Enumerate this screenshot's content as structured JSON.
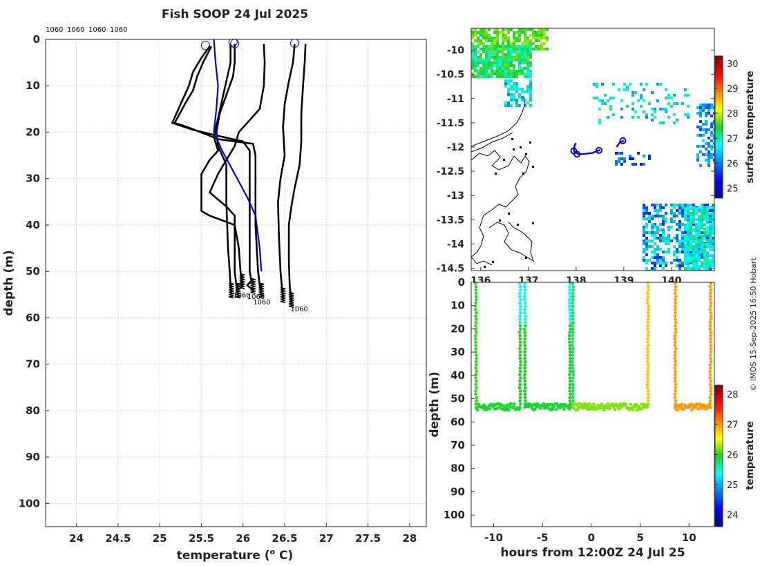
{
  "chart_data": [
    {
      "type": "line",
      "title": "Fish SOOP 24 Jul 2025",
      "xlabel": "temperature (",
      "xlabel_sup": "o",
      "xlabel_tail": " C)",
      "ylabel": "depth (m)",
      "xlim": [
        23.63,
        28.2
      ],
      "ylim": [
        0,
        105
      ],
      "xticks": [
        24,
        24.5,
        25,
        25.5,
        26,
        26.5,
        27,
        27.5,
        28
      ],
      "yticks": [
        0,
        10,
        20,
        30,
        40,
        50,
        60,
        70,
        80,
        90,
        100
      ],
      "top_labels": [
        "1060",
        "1060",
        "1060",
        "1060"
      ],
      "profile_labels": [
        {
          "text": "1060",
          "x": 25.88,
          "y": 55.0
        },
        {
          "text": "1060",
          "x": 26.05,
          "y": 55.3
        },
        {
          "text": "1060",
          "x": 26.12,
          "y": 56.5
        },
        {
          "text": "1060",
          "x": 26.57,
          "y": 58.0
        }
      ],
      "series": [
        {
          "name": "profile-1",
          "color": "#000000",
          "points": [
            [
              25.6,
              1.5
            ],
            [
              25.5,
              4
            ],
            [
              25.4,
              7
            ],
            [
              25.35,
              10
            ],
            [
              25.3,
              12
            ],
            [
              25.25,
              14
            ],
            [
              25.2,
              16
            ],
            [
              25.15,
              18
            ],
            [
              25.4,
              19.5
            ],
            [
              25.75,
              21
            ],
            [
              26.0,
              22
            ],
            [
              26.08,
              24
            ],
            [
              26.08,
              30
            ],
            [
              26.08,
              40
            ],
            [
              26.08,
              50
            ],
            [
              26.1,
              52
            ],
            [
              26.05,
              53
            ],
            [
              26.12,
              54
            ]
          ]
        },
        {
          "name": "profile-2",
          "color": "#000000",
          "points": [
            [
              25.62,
              1.5
            ],
            [
              25.52,
              5
            ],
            [
              25.45,
              8
            ],
            [
              25.4,
              11
            ],
            [
              25.3,
              14
            ],
            [
              25.18,
              18
            ],
            [
              25.35,
              19
            ],
            [
              25.7,
              21.5
            ],
            [
              26.12,
              22.5
            ],
            [
              26.15,
              25
            ],
            [
              26.15,
              40
            ],
            [
              26.18,
              50
            ],
            [
              26.2,
              53
            ],
            [
              26.22,
              55
            ]
          ]
        },
        {
          "name": "profile-3",
          "color": "#000000",
          "points": [
            [
              25.9,
              1
            ],
            [
              25.9,
              5
            ],
            [
              25.88,
              8
            ],
            [
              25.8,
              12
            ],
            [
              25.72,
              16
            ],
            [
              25.68,
              20
            ],
            [
              25.7,
              23
            ],
            [
              25.75,
              25
            ],
            [
              25.8,
              27
            ],
            [
              25.8,
              35
            ],
            [
              25.82,
              45
            ],
            [
              25.84,
              50
            ],
            [
              25.85,
              53
            ],
            [
              25.86,
              55
            ]
          ]
        },
        {
          "name": "profile-4",
          "color": "#000000",
          "points": [
            [
              25.85,
              1
            ],
            [
              25.85,
              5
            ],
            [
              25.8,
              9
            ],
            [
              25.75,
              13
            ],
            [
              25.7,
              17
            ],
            [
              25.65,
              21
            ],
            [
              25.7,
              24
            ],
            [
              25.6,
              26
            ],
            [
              25.5,
              29
            ],
            [
              25.5,
              33
            ],
            [
              25.5,
              37
            ],
            [
              25.6,
              38
            ],
            [
              25.9,
              40
            ],
            [
              25.95,
              45
            ],
            [
              25.97,
              50
            ],
            [
              25.99,
              53
            ]
          ]
        },
        {
          "name": "profile-5",
          "color": "#000000",
          "points": [
            [
              26.25,
              1
            ],
            [
              26.26,
              5
            ],
            [
              26.25,
              10
            ],
            [
              26.2,
              15
            ],
            [
              26.05,
              18
            ],
            [
              25.95,
              20
            ],
            [
              25.9,
              23
            ],
            [
              25.8,
              26
            ],
            [
              25.7,
              29
            ],
            [
              25.6,
              33
            ],
            [
              25.8,
              36
            ],
            [
              25.9,
              38
            ],
            [
              25.9,
              45
            ],
            [
              25.9,
              50
            ],
            [
              25.92,
              53
            ],
            [
              25.94,
              55
            ]
          ]
        },
        {
          "name": "profile-6",
          "color": "#000000",
          "points": [
            [
              26.62,
              1
            ],
            [
              26.6,
              5
            ],
            [
              26.55,
              9
            ],
            [
              26.5,
              14
            ],
            [
              26.48,
              19
            ],
            [
              26.5,
              25
            ],
            [
              26.45,
              30
            ],
            [
              26.42,
              35
            ],
            [
              26.43,
              42
            ],
            [
              26.45,
              50
            ],
            [
              26.47,
              54
            ],
            [
              26.48,
              56
            ]
          ]
        },
        {
          "name": "profile-7",
          "color": "#000000",
          "points": [
            [
              26.75,
              1
            ],
            [
              26.74,
              5
            ],
            [
              26.72,
              10
            ],
            [
              26.7,
              16
            ],
            [
              26.7,
              22
            ],
            [
              26.68,
              27
            ],
            [
              26.62,
              32
            ],
            [
              26.58,
              36
            ],
            [
              26.55,
              40
            ],
            [
              26.55,
              48
            ],
            [
              26.56,
              53
            ],
            [
              26.58,
              57
            ]
          ]
        },
        {
          "name": "model-profile",
          "color": "#0000cc",
          "points": [
            [
              25.65,
              0
            ],
            [
              25.67,
              5
            ],
            [
              25.7,
              10
            ],
            [
              25.68,
              15
            ],
            [
              25.65,
              20
            ],
            [
              25.75,
              24
            ],
            [
              25.9,
              29
            ],
            [
              26.05,
              34
            ],
            [
              26.15,
              38
            ],
            [
              26.2,
              45
            ],
            [
              26.22,
              50
            ]
          ]
        }
      ],
      "markers": [
        [
          25.55,
          1.3
        ],
        [
          25.88,
          0.6
        ],
        [
          25.9,
          0.9
        ],
        [
          26.62,
          0.8
        ]
      ]
    },
    {
      "type": "heatmap",
      "ylabel": "",
      "colorbar_label": "surface temperature",
      "colorbar_range": [
        24.6,
        30.3
      ],
      "colorbar_ticks": [
        25,
        26,
        27,
        28,
        29,
        30
      ],
      "xlim": [
        135.8,
        140.9
      ],
      "ylim": [
        -14.55,
        -9.55
      ],
      "xticks": [
        "136",
        "137",
        "138",
        "139",
        "140"
      ],
      "xtick_values": [
        136,
        137,
        138,
        139,
        140
      ],
      "yticks": [
        "-10",
        "-10.5",
        "-11",
        "-11.5",
        "-12",
        "-12.5",
        "-13",
        "-13.5",
        "-14",
        "-14.5"
      ],
      "ytick_values": [
        -10,
        -10.5,
        -11,
        -11.5,
        -12,
        -12.5,
        -13,
        -13.5,
        -14,
        -14.5
      ],
      "track": [
        [
          [
            137.95,
            -12.08
          ],
          [
            137.97,
            -11.95
          ],
          [
            138.0,
            -11.92
          ]
        ],
        [
          [
            137.95,
            -12.08
          ],
          [
            138.05,
            -12.15
          ],
          [
            138.2,
            -12.14
          ],
          [
            138.35,
            -12.12
          ],
          [
            138.5,
            -12.06
          ]
        ],
        [
          [
            138.85,
            -12.0
          ],
          [
            138.92,
            -11.9
          ],
          [
            139.0,
            -11.87
          ]
        ]
      ],
      "track_markers": [
        [
          137.95,
          -12.08
        ],
        [
          138.02,
          -12.15
        ],
        [
          138.48,
          -12.07
        ],
        [
          138.98,
          -11.87
        ]
      ]
    },
    {
      "type": "scatter",
      "xlabel": "hours from 12:00Z 24 Jul 25",
      "ylabel": "depth (m)",
      "colorbar_label": "temperature",
      "colorbar_range": [
        23.6,
        28.3
      ],
      "colorbar_ticks": [
        24,
        25,
        26,
        27,
        28
      ],
      "xlim": [
        -12.3,
        12.6
      ],
      "ylim": [
        0,
        105
      ],
      "xticks": [
        -10,
        -5,
        0,
        5,
        10
      ],
      "yticks": [
        0,
        10,
        20,
        30,
        40,
        50,
        60,
        70,
        80,
        90,
        100
      ],
      "columns": [
        {
          "x": -11.8,
          "temp": 26.0
        },
        {
          "x": -7.3,
          "temp": 25.4
        },
        {
          "x": -6.8,
          "temp": 25.4
        },
        {
          "x": -2.2,
          "temp": 25.4
        },
        {
          "x": -1.9,
          "temp": 25.8
        },
        {
          "x": 5.8,
          "temp": 26.8
        },
        {
          "x": 8.6,
          "temp": 27.0
        },
        {
          "x": 12.2,
          "temp": 27.0
        }
      ],
      "bottom_segments": [
        {
          "x0": -11.8,
          "x1": -7.3,
          "temp": 25.9
        },
        {
          "x0": -6.8,
          "x1": -2.2,
          "temp": 25.9
        },
        {
          "x0": -1.9,
          "x1": 5.8,
          "temp": 26.2
        },
        {
          "x0": 8.6,
          "x1": 12.2,
          "temp": 27.0
        }
      ]
    }
  ],
  "credit": "© IMOS 15-Sep-2025 16:50 Hobart"
}
